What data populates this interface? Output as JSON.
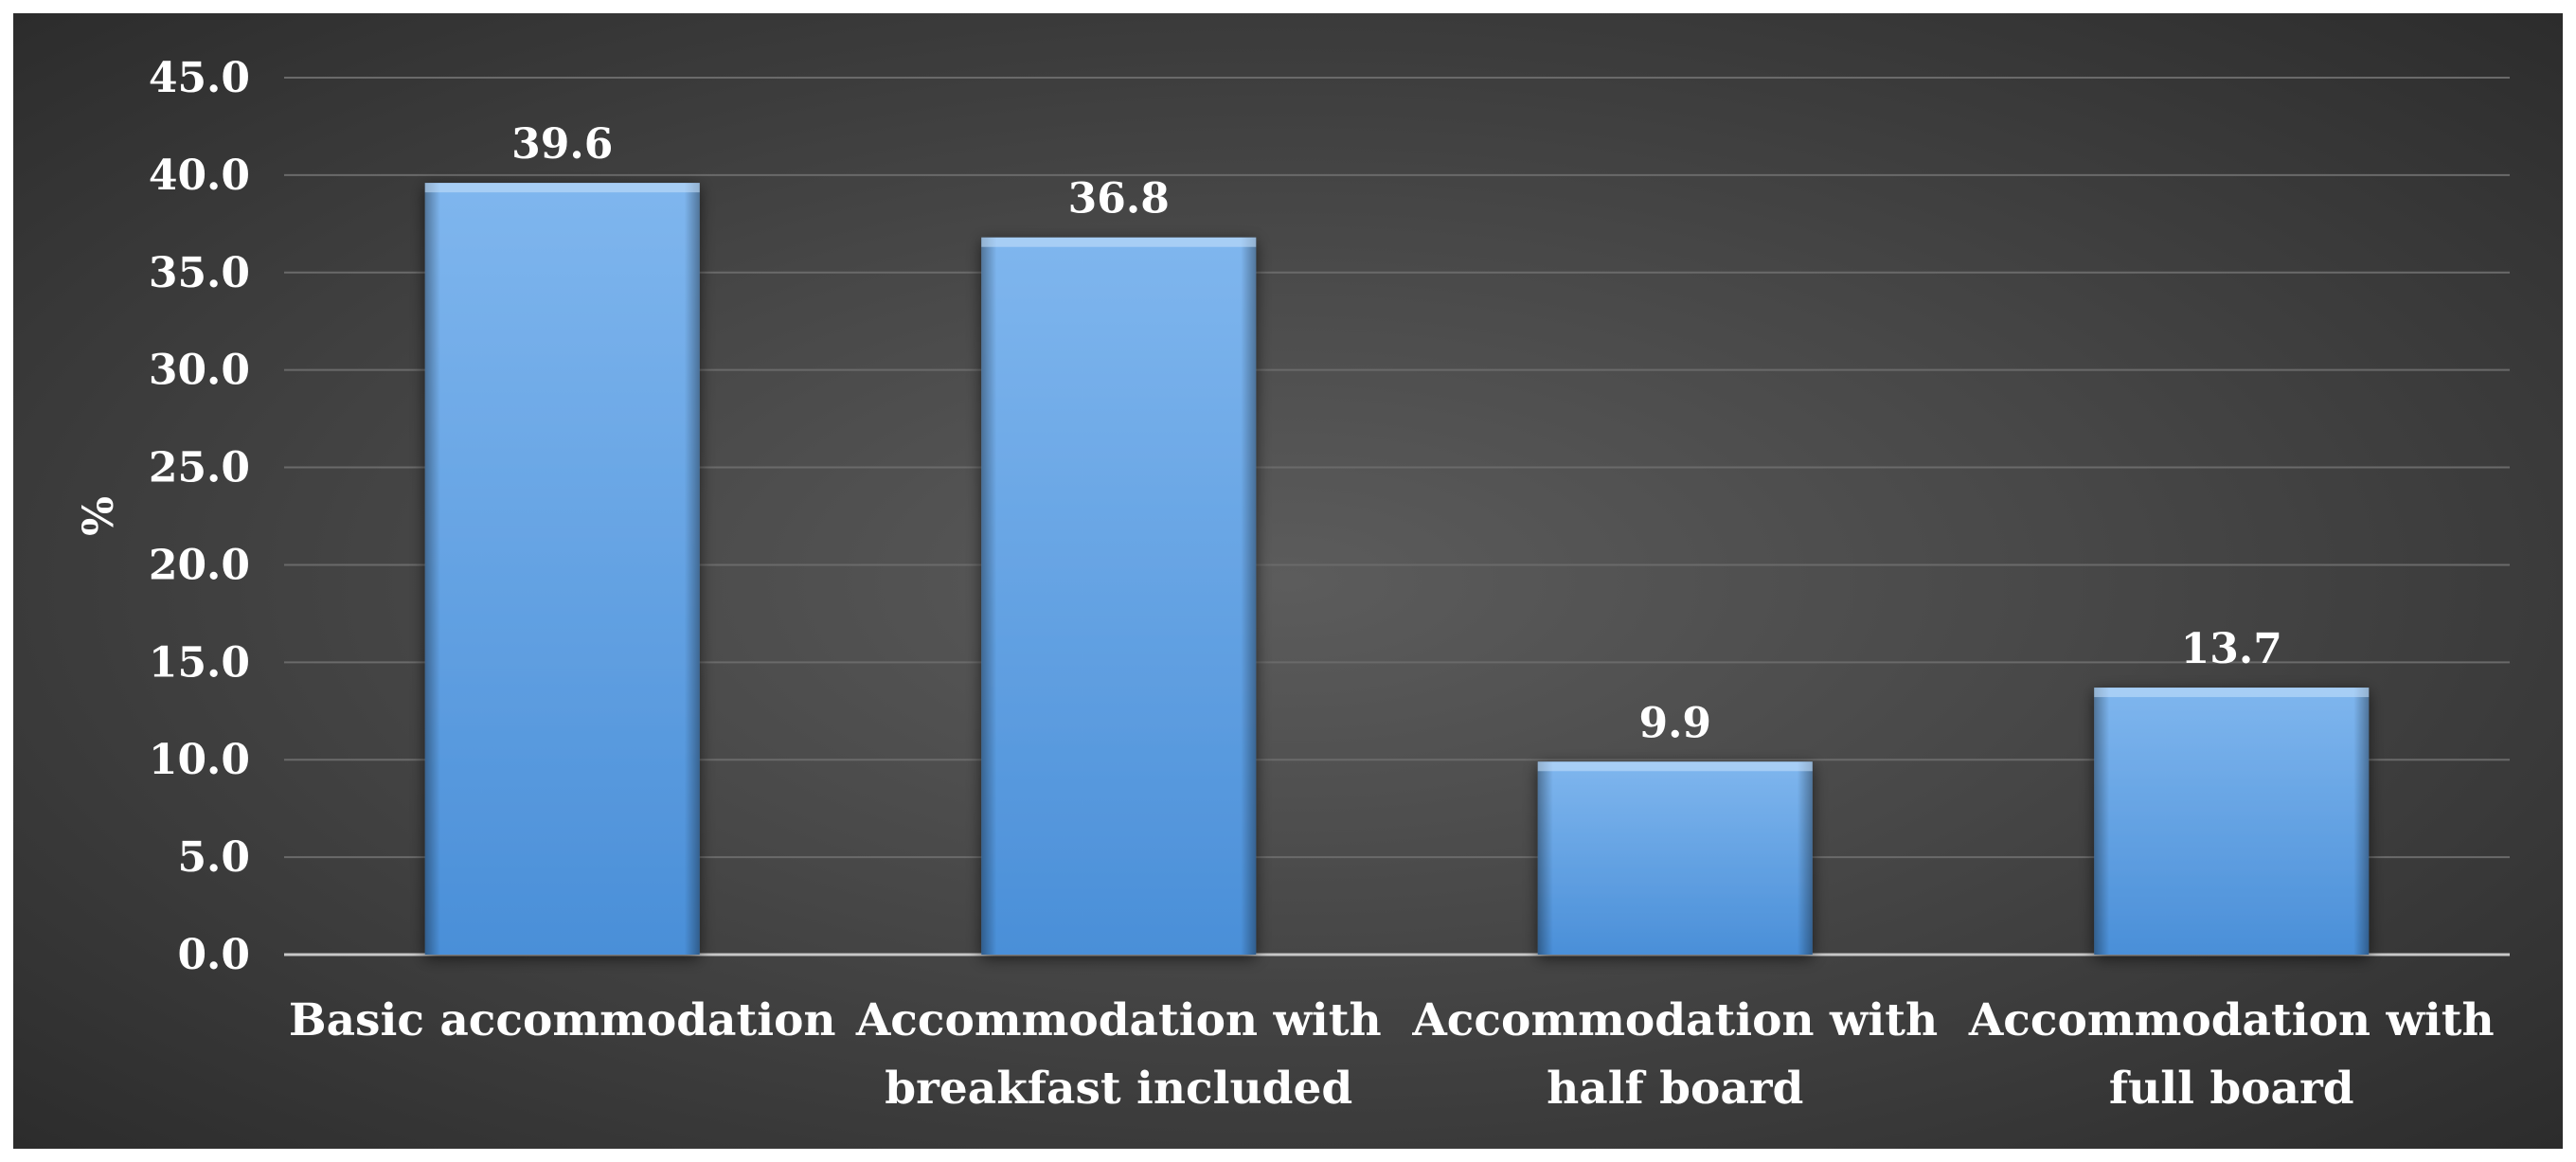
{
  "chart_data": {
    "type": "bar",
    "categories": [
      [
        "Basic accommodation"
      ],
      [
        "Accommodation with",
        "breakfast included"
      ],
      [
        "Accommodation with",
        "half board"
      ],
      [
        "Accommodation with",
        "full board"
      ]
    ],
    "values": [
      39.6,
      36.8,
      9.9,
      13.7
    ],
    "data_labels": [
      "39.6",
      "36.8",
      "9.9",
      "13.7"
    ],
    "ylabel": "%",
    "xlabel": "",
    "title": "",
    "ylim": [
      0,
      45
    ],
    "yticks": [
      "0.0",
      "5.0",
      "10.0",
      "15.0",
      "20.0",
      "25.0",
      "30.0",
      "35.0",
      "40.0",
      "45.0"
    ],
    "grid": true,
    "legend": "none",
    "colors": {
      "bar_light": "#7fb6ee",
      "bar_mid": "#5ea1e6",
      "bar_dark": "#4a8fd8",
      "grid": "#6a6a6a",
      "axis": "#c8c8c8",
      "text": "#ffffff"
    }
  }
}
